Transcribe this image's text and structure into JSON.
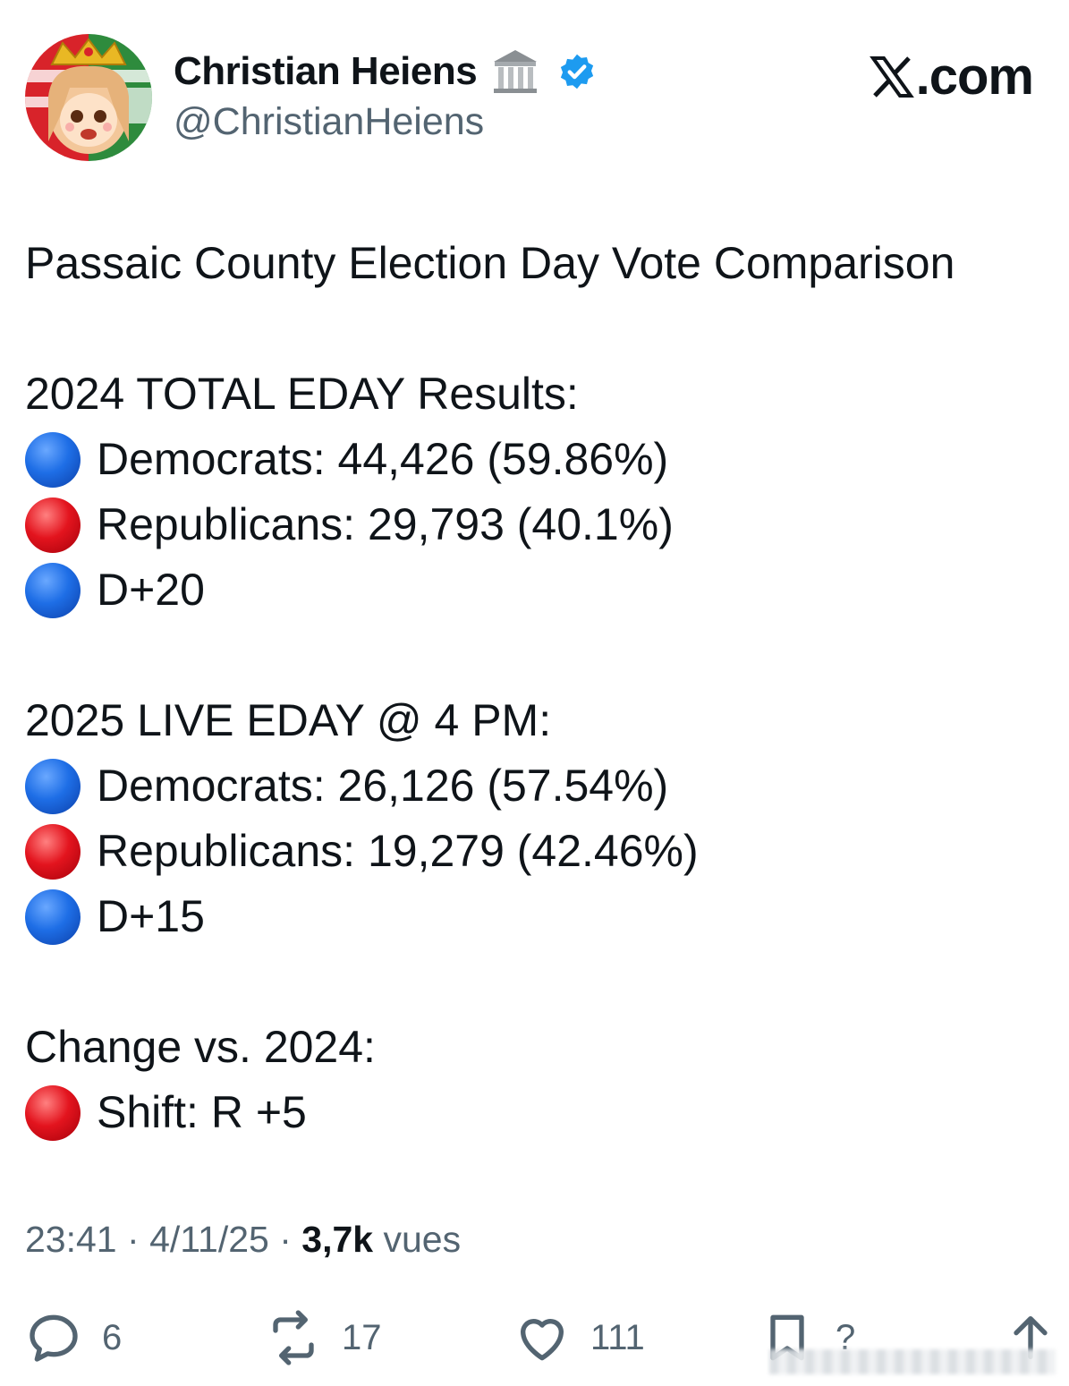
{
  "author": {
    "display_name": "Christian Heiens",
    "handle": "@ChristianHeiens",
    "badge_icon": "classical-building-icon",
    "verified_icon": "verified-badge-icon",
    "avatar_icon": "anime-avatar-icon"
  },
  "site": {
    "label": ".com",
    "logo_icon": "x-logo-icon"
  },
  "tweet": {
    "title": "Passaic County Election Day Vote Comparison",
    "section_2024": {
      "heading": "2024 TOTAL EDAY Results:",
      "democrats": "Democrats: 44,426 (59.86%)",
      "republicans": "Republicans: 29,793 (40.1%)",
      "margin": "D+20"
    },
    "section_2025": {
      "heading": "2025 LIVE EDAY @ 4 PM:",
      "democrats": "Democrats: 26,126 (57.54%)",
      "republicans": "Republicans: 19,279 (42.46%)",
      "margin": "D+15"
    },
    "section_change": {
      "heading": "Change vs. 2024:",
      "shift": "Shift: R +5"
    }
  },
  "meta": {
    "time": "23:41",
    "date": "4/11/25",
    "views_count": "3,7k",
    "views_label": "vues"
  },
  "actions": {
    "replies": "6",
    "reposts": "17",
    "likes": "111",
    "bookmarks": "?"
  },
  "colors": {
    "text": "#0f1419",
    "secondary": "#536471",
    "verified": "#1d9bf0",
    "blue_dot": "#1e6ee6",
    "red_dot": "#e3141e"
  }
}
